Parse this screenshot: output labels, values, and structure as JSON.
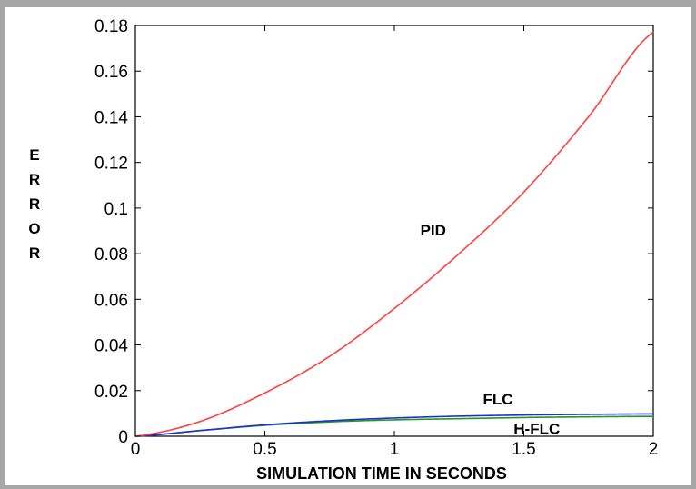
{
  "chart_data": {
    "type": "line",
    "title": "",
    "xlabel": "SIMULATION TIME IN SECONDS",
    "ylabel": "ERROR",
    "xlim": [
      0,
      2
    ],
    "ylim": [
      0,
      0.18
    ],
    "xticks": [
      0,
      0.5,
      1,
      1.5,
      2
    ],
    "xtick_labels": [
      "0",
      "0.5",
      "1",
      "1.5",
      "2"
    ],
    "yticks": [
      0,
      0.02,
      0.04,
      0.06,
      0.08,
      0.1,
      0.12,
      0.14,
      0.16,
      0.18
    ],
    "ytick_labels": [
      "0",
      "0.02",
      "0.04",
      "0.06",
      "0.08",
      "0.1",
      "0.12",
      "0.14",
      "0.16",
      "0.18"
    ],
    "grid": false,
    "legend": "none",
    "x": [
      0,
      0.25,
      0.5,
      0.75,
      1,
      1.25,
      1.5,
      1.75,
      2
    ],
    "series": [
      {
        "name": "PID",
        "color": "#ff4040",
        "values": [
          0,
          0.0065,
          0.019,
          0.035,
          0.056,
          0.08,
          0.107,
          0.14,
          0.177
        ]
      },
      {
        "name": "FLC",
        "color": "#2030d0",
        "values": [
          0,
          0.0025,
          0.005,
          0.0068,
          0.008,
          0.0088,
          0.0093,
          0.0096,
          0.0098
        ]
      },
      {
        "name": "H-FLC",
        "color": "#1e9a1e",
        "values": [
          0,
          0.0025,
          0.0048,
          0.0063,
          0.0072,
          0.0077,
          0.0082,
          0.0085,
          0.0087
        ]
      }
    ],
    "annotations": [
      {
        "text": "PID",
        "x": 1.15,
        "y": 0.088
      },
      {
        "text": "FLC",
        "x": 1.4,
        "y": 0.014
      },
      {
        "text": "H-FLC",
        "x": 1.55,
        "y": 0.001
      }
    ]
  }
}
